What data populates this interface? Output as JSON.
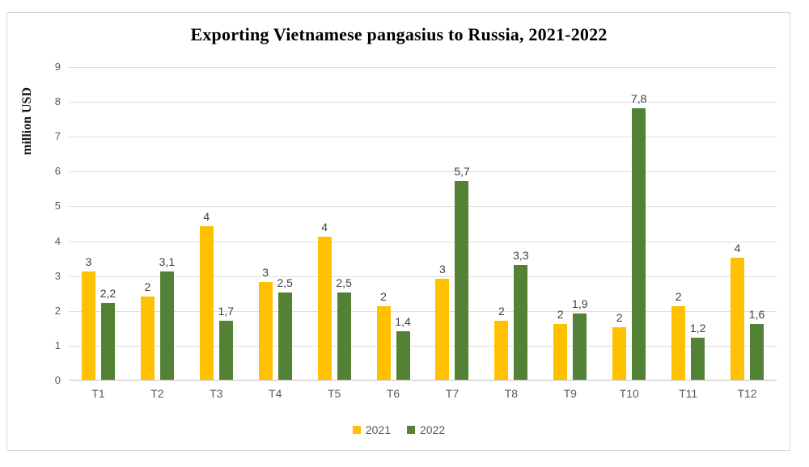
{
  "chart_data": {
    "type": "bar",
    "title": "Exporting Vietnamese pangasius to Russia, 2021-2022",
    "ylabel": "million USD",
    "xlabel": "",
    "categories": [
      "T1",
      "T2",
      "T3",
      "T4",
      "T5",
      "T6",
      "T7",
      "T8",
      "T9",
      "T10",
      "T11",
      "T12"
    ],
    "series": [
      {
        "name": "2021",
        "color": "#FFC000",
        "values": [
          3.1,
          2.4,
          4.4,
          2.8,
          4.1,
          2.1,
          2.9,
          1.7,
          1.6,
          1.5,
          2.1,
          3.5
        ],
        "data_labels": [
          "3",
          "2",
          "4",
          "3",
          "4",
          "2",
          "3",
          "2",
          "2",
          "2",
          "2",
          "4"
        ]
      },
      {
        "name": "2022",
        "color": "#538135",
        "values": [
          2.2,
          3.1,
          1.7,
          2.5,
          2.5,
          1.4,
          5.7,
          3.3,
          1.9,
          7.8,
          1.2,
          1.6
        ],
        "data_labels": [
          "2,2",
          "3,1",
          "1,7",
          "2,5",
          "2,5",
          "1,4",
          "5,7",
          "3,3",
          "1,9",
          "7,8",
          "1,2",
          "1,6"
        ]
      }
    ],
    "ylim": [
      0,
      9
    ],
    "yticks": [
      0,
      1,
      2,
      3,
      4,
      5,
      6,
      7,
      8,
      9
    ],
    "grid": true,
    "legend_position": "bottom",
    "gridline_color": "#DEDEDE",
    "axis_line_color": "#BFBFBF",
    "tick_text_color": "#595959",
    "data_label_color": "#404040",
    "frame_border_color": "#D6D6D6"
  }
}
